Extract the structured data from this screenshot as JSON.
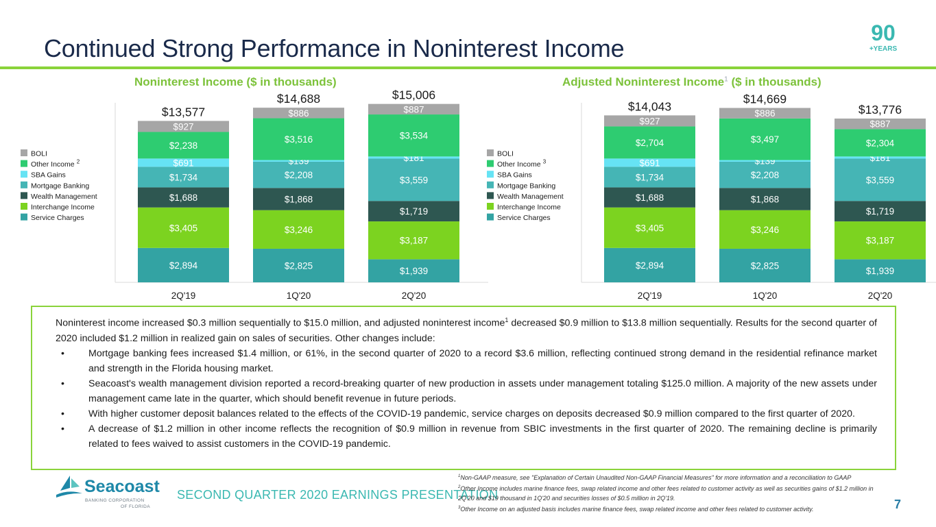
{
  "title": "Continued Strong Performance in Noninterest Income",
  "badge": {
    "number": "90",
    "label": "+YEARS"
  },
  "colors": {
    "BOLI": "#a6a6a6",
    "Other Income": "#2ecc71",
    "SBA Gains": "#66e3f4",
    "Mortgage Banking": "#45b5b5",
    "Wealth Management": "#2e5751",
    "Interchange Income": "#7cd320",
    "Service Charges": "#33a3a3",
    "title_green": "#7cc23a",
    "rule_green": "#8ad33a"
  },
  "chart_data": [
    {
      "type": "bar",
      "stacked": true,
      "title": "Noninterest Income ($ in thousands)",
      "categories": [
        "2Q'19",
        "1Q'20",
        "2Q'20"
      ],
      "totals": [
        "$13,577",
        "$14,688",
        "$15,006"
      ],
      "legend_position": "left",
      "legend_marks": {
        "Other Income": "2"
      },
      "series": [
        {
          "name": "Service Charges",
          "values": [
            2894,
            2825,
            1939
          ],
          "labels": [
            "$2,894",
            "$2,825",
            "$1,939"
          ]
        },
        {
          "name": "Interchange Income",
          "values": [
            3405,
            3246,
            3187
          ],
          "labels": [
            "$3,405",
            "$3,246",
            "$3,187"
          ]
        },
        {
          "name": "Wealth Management",
          "values": [
            1688,
            1868,
            1719
          ],
          "labels": [
            "$1,688",
            "$1,868",
            "$1,719"
          ]
        },
        {
          "name": "Mortgage Banking",
          "values": [
            1734,
            2208,
            3559
          ],
          "labels": [
            "$1,734",
            "$2,208",
            "$3,559"
          ]
        },
        {
          "name": "SBA Gains",
          "values": [
            691,
            139,
            181
          ],
          "labels": [
            "$691",
            "$139",
            "$181"
          ]
        },
        {
          "name": "Other Income",
          "values": [
            2238,
            3516,
            3534
          ],
          "labels": [
            "$2,238",
            "$3,516",
            "$3,534"
          ]
        },
        {
          "name": "BOLI",
          "values": [
            927,
            886,
            887
          ],
          "labels": [
            "$927",
            "$886",
            "$887"
          ]
        }
      ]
    },
    {
      "type": "bar",
      "stacked": true,
      "title": "Adjusted Noninterest Income",
      "title_mark": "1",
      "title_suffix": "($ in thousands)",
      "categories": [
        "2Q'19",
        "1Q'20",
        "2Q'20"
      ],
      "totals": [
        "$14,043",
        "$14,669",
        "$13,776"
      ],
      "legend_position": "left",
      "legend_marks": {
        "Other Income": "3"
      },
      "series": [
        {
          "name": "Service Charges",
          "values": [
            2894,
            2825,
            1939
          ],
          "labels": [
            "$2,894",
            "$2,825",
            "$1,939"
          ]
        },
        {
          "name": "Interchange Income",
          "values": [
            3405,
            3246,
            3187
          ],
          "labels": [
            "$3,405",
            "$3,246",
            "$3,187"
          ]
        },
        {
          "name": "Wealth Management",
          "values": [
            1688,
            1868,
            1719
          ],
          "labels": [
            "$1,688",
            "$1,868",
            "$1,719"
          ]
        },
        {
          "name": "Mortgage Banking",
          "values": [
            1734,
            2208,
            3559
          ],
          "labels": [
            "$1,734",
            "$2,208",
            "$3,559"
          ]
        },
        {
          "name": "SBA Gains",
          "values": [
            691,
            139,
            181
          ],
          "labels": [
            "$691",
            "$139",
            "$181"
          ]
        },
        {
          "name": "Other Income",
          "values": [
            2704,
            3497,
            2304
          ],
          "labels": [
            "$2,704",
            "$3,497",
            "$2,304"
          ]
        },
        {
          "name": "BOLI",
          "values": [
            927,
            886,
            887
          ],
          "labels": [
            "$927",
            "$886",
            "$887"
          ]
        }
      ]
    }
  ],
  "summary": {
    "intro_before": "Noninterest income increased $0.3 million sequentially to $15.0 million, and adjusted noninterest income",
    "intro_mark": "1",
    "intro_after": " decreased $0.9 million to $13.8 million sequentially. Results for the second quarter of 2020 included $1.2 million in realized gain on sales of securities. Other changes include:",
    "bullet_char": "•",
    "bullets": [
      "Mortgage banking fees increased $1.4 million, or 61%, in the second quarter of 2020 to a record $3.6 million, reflecting continued strong demand in the residential refinance market and strength in the Florida housing market.",
      "Seacoast's wealth management division reported a record-breaking quarter of new production in assets under management totaling $125.0 million. A majority of the new assets under management came late in the quarter, which should benefit revenue in future periods.",
      "With higher customer deposit balances related to the effects of the COVID-19 pandemic, service charges on deposits decreased $0.9 million compared to the first quarter of 2020.",
      "A decrease of $1.2 million in other income reflects the recognition of $0.9 million in revenue from SBIC investments in the first quarter of 2020. The remaining decline is primarily related to fees waived to assist customers in the COVID-19 pandemic."
    ]
  },
  "logo": {
    "name": "Seacoast",
    "sub1": "BANKING CORPORATION",
    "sub2": "OF FLORIDA"
  },
  "footer": {
    "presentation_label": "SECOND QUARTER 2020 EARNINGS PRESENTATION",
    "page_number": "7"
  },
  "footnotes": [
    {
      "mark": "1",
      "text": "Non-GAAP measure, see \"Explanation of Certain Unaudited Non-GAAP Financial Measures\" for more information and a reconciliation to GAAP"
    },
    {
      "mark": "2",
      "text": "Other Income includes marine finance fees, swap related income and other fees related to customer activity as well as securities gains of $1.2 million in 2Q'20 and $19 thousand in 1Q'20 and securities losses of $0.5 million in 2Q'19."
    },
    {
      "mark": "3",
      "text": "Other Income on an adjusted basis includes marine finance fees, swap related income and other fees related to customer activity."
    }
  ]
}
